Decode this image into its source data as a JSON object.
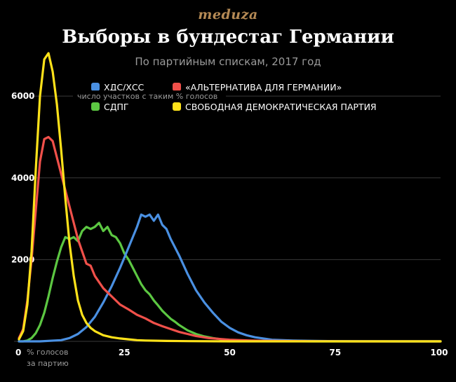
{
  "header": {
    "brand": "meduza",
    "title": "Выборы в бундестаг Германии",
    "subtitle": "По партийным спискам, 2017 год"
  },
  "colors": {
    "background": "#000000",
    "grid": "#3a3a3a",
    "brand": "#b58a55",
    "muted": "#9a9a9a"
  },
  "chart_data": {
    "type": "line",
    "title": "Выборы в бундестаг Германии",
    "subtitle": "По партийным спискам, 2017 год",
    "ylabel": "число участков с таким % голосов",
    "xlabel": "% голосов за партию",
    "xlabel_lines": [
      "% голосов",
      "за партию"
    ],
    "xlim": [
      0,
      100
    ],
    "ylim": [
      0,
      6500
    ],
    "x_ticks": [
      0,
      25,
      50,
      75,
      100
    ],
    "y_ticks": [
      2000,
      4000,
      6000
    ],
    "grid": true,
    "legend_position": "top",
    "series": [
      {
        "name": "ХДС/ХСС",
        "color": "#4a90e2",
        "x": [
          0,
          5,
          10,
          12,
          14,
          16,
          18,
          20,
          22,
          24,
          25,
          26,
          27,
          28,
          29,
          30,
          31,
          32,
          33,
          34,
          35,
          36,
          37,
          38,
          40,
          42,
          44,
          46,
          48,
          50,
          52,
          54,
          56,
          58,
          60,
          65,
          70,
          75,
          80,
          90,
          100
        ],
        "y": [
          0,
          0,
          30,
          80,
          180,
          350,
          600,
          950,
          1350,
          1800,
          2050,
          2300,
          2550,
          2800,
          3100,
          3050,
          3100,
          2950,
          3100,
          2850,
          2750,
          2500,
          2300,
          2100,
          1650,
          1250,
          950,
          700,
          480,
          330,
          220,
          150,
          100,
          70,
          40,
          20,
          10,
          5,
          3,
          0,
          0
        ]
      },
      {
        "name": "«АЛЬТЕРНАТИВА ДЛЯ ГЕРМАНИИ»",
        "color": "#f0504a",
        "x": [
          0,
          1,
          2,
          3,
          4,
          5,
          6,
          7,
          8,
          9,
          10,
          11,
          12,
          13,
          14,
          15,
          16,
          17,
          18,
          20,
          22,
          24,
          26,
          28,
          30,
          32,
          34,
          36,
          38,
          40,
          42,
          45,
          50,
          55,
          60,
          70,
          80,
          100
        ],
        "y": [
          80,
          300,
          1000,
          2000,
          3200,
          4400,
          4950,
          5000,
          4900,
          4500,
          4100,
          3700,
          3300,
          2900,
          2500,
          2200,
          1900,
          1850,
          1600,
          1300,
          1100,
          900,
          780,
          650,
          560,
          450,
          370,
          300,
          230,
          180,
          130,
          80,
          40,
          20,
          10,
          3,
          0,
          0
        ]
      },
      {
        "name": "СДПГ",
        "color": "#5cc742",
        "x": [
          0,
          1,
          2,
          3,
          4,
          5,
          6,
          7,
          8,
          9,
          10,
          11,
          12,
          13,
          14,
          15,
          16,
          17,
          18,
          19,
          20,
          21,
          22,
          23,
          24,
          25,
          26,
          27,
          28,
          29,
          30,
          31,
          32,
          33,
          34,
          35,
          36,
          37,
          38,
          40,
          42,
          44,
          46,
          48,
          50,
          55,
          60,
          70,
          80,
          100
        ],
        "y": [
          0,
          0,
          20,
          80,
          200,
          400,
          700,
          1100,
          1550,
          1950,
          2300,
          2550,
          2500,
          2550,
          2450,
          2700,
          2800,
          2750,
          2800,
          2900,
          2700,
          2800,
          2600,
          2550,
          2400,
          2150,
          2000,
          1800,
          1600,
          1400,
          1250,
          1150,
          1000,
          880,
          750,
          650,
          550,
          480,
          400,
          270,
          180,
          120,
          80,
          50,
          30,
          10,
          5,
          0,
          0,
          0
        ]
      },
      {
        "name": "СВОБОДНАЯ ДЕМОКРАТИЧЕСКАЯ ПАРТИЯ",
        "color": "#ffe21a",
        "x": [
          0,
          1,
          2,
          3,
          4,
          5,
          6,
          7,
          8,
          9,
          10,
          11,
          12,
          13,
          14,
          15,
          16,
          17,
          18,
          20,
          22,
          24,
          26,
          28,
          30,
          35,
          40,
          50,
          60,
          100
        ],
        "y": [
          50,
          250,
          900,
          2200,
          4200,
          6000,
          6900,
          7050,
          6600,
          5800,
          4700,
          3500,
          2400,
          1600,
          1000,
          650,
          450,
          330,
          250,
          150,
          100,
          70,
          50,
          30,
          20,
          10,
          5,
          0,
          0,
          0
        ]
      }
    ]
  }
}
